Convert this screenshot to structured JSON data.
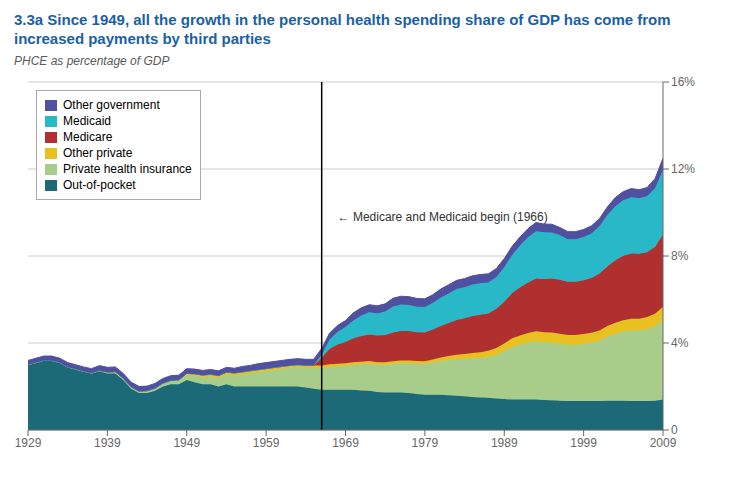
{
  "chart_data": {
    "type": "area",
    "stacked": true,
    "title": "3.3a Since 1949, all the growth in the personal health spending share of GDP has come from increased payments by third parties",
    "y_label": "PHCE as percentage of GDP",
    "annotations": [
      {
        "text": "← Medicare and Medicaid begin (1966)",
        "x": 1968,
        "y": 9.8
      }
    ],
    "vlines": [
      1966
    ],
    "xlim": [
      1929,
      2009
    ],
    "xticks": [
      1929,
      1939,
      1949,
      1959,
      1969,
      1979,
      1989,
      1999,
      2009
    ],
    "ylim": [
      0,
      16
    ],
    "yticks": [
      0,
      {
        "value": 4,
        "label": "4%"
      },
      {
        "value": 8,
        "label": "8%"
      },
      {
        "value": 12,
        "label": "12%"
      },
      {
        "value": 16,
        "label": "16%"
      }
    ],
    "grid": true,
    "legend": "upper left",
    "x": [
      1929,
      1930,
      1931,
      1932,
      1933,
      1934,
      1935,
      1936,
      1937,
      1938,
      1939,
      1940,
      1941,
      1942,
      1943,
      1944,
      1945,
      1946,
      1947,
      1948,
      1949,
      1950,
      1951,
      1952,
      1953,
      1954,
      1955,
      1956,
      1957,
      1958,
      1959,
      1960,
      1961,
      1962,
      1963,
      1964,
      1965,
      1966,
      1967,
      1968,
      1969,
      1970,
      1971,
      1972,
      1973,
      1974,
      1975,
      1976,
      1977,
      1978,
      1979,
      1980,
      1981,
      1982,
      1983,
      1984,
      1985,
      1986,
      1987,
      1988,
      1989,
      1990,
      1991,
      1992,
      1993,
      1994,
      1995,
      1996,
      1997,
      1998,
      1999,
      2000,
      2001,
      2002,
      2003,
      2004,
      2005,
      2006,
      2007,
      2008,
      2009
    ],
    "series": [
      {
        "name": "Out-of-pocket",
        "color": "#1c6978",
        "values": [
          3.0,
          3.1,
          3.2,
          3.2,
          3.1,
          2.9,
          2.8,
          2.7,
          2.6,
          2.7,
          2.6,
          2.6,
          2.3,
          1.9,
          1.7,
          1.7,
          1.8,
          2.0,
          2.1,
          2.1,
          2.3,
          2.2,
          2.1,
          2.1,
          2.0,
          2.1,
          2.0,
          2.0,
          2.0,
          2.0,
          2.0,
          2.0,
          2.0,
          2.0,
          2.0,
          1.95,
          1.9,
          1.85,
          1.85,
          1.85,
          1.85,
          1.85,
          1.82,
          1.8,
          1.75,
          1.72,
          1.72,
          1.72,
          1.7,
          1.65,
          1.62,
          1.62,
          1.62,
          1.6,
          1.58,
          1.55,
          1.52,
          1.5,
          1.48,
          1.45,
          1.42,
          1.4,
          1.4,
          1.4,
          1.4,
          1.38,
          1.37,
          1.35,
          1.33,
          1.33,
          1.33,
          1.33,
          1.33,
          1.35,
          1.35,
          1.35,
          1.33,
          1.33,
          1.33,
          1.35,
          1.4
        ]
      },
      {
        "name": "Private health insurance",
        "color": "#a8cc8a",
        "values": [
          0.0,
          0.0,
          0.0,
          0.0,
          0.0,
          0.0,
          0.0,
          0.0,
          0.02,
          0.04,
          0.06,
          0.08,
          0.08,
          0.08,
          0.08,
          0.1,
          0.12,
          0.15,
          0.18,
          0.2,
          0.22,
          0.28,
          0.32,
          0.36,
          0.4,
          0.44,
          0.5,
          0.55,
          0.6,
          0.65,
          0.7,
          0.75,
          0.8,
          0.85,
          0.88,
          0.9,
          0.95,
          1.0,
          1.05,
          1.08,
          1.1,
          1.15,
          1.2,
          1.25,
          1.25,
          1.28,
          1.32,
          1.36,
          1.38,
          1.4,
          1.42,
          1.48,
          1.55,
          1.62,
          1.68,
          1.72,
          1.78,
          1.82,
          1.88,
          2.0,
          2.2,
          2.42,
          2.52,
          2.62,
          2.68,
          2.65,
          2.65,
          2.62,
          2.58,
          2.58,
          2.62,
          2.68,
          2.78,
          2.95,
          3.08,
          3.18,
          3.25,
          3.25,
          3.3,
          3.42,
          3.65
        ]
      },
      {
        "name": "Other private",
        "color": "#e8c020",
        "values": [
          0.0,
          0.0,
          0.0,
          0.0,
          0.0,
          0.0,
          0.0,
          0.0,
          0.0,
          0.0,
          0.0,
          0.0,
          0.0,
          0.0,
          0.0,
          0.0,
          0.0,
          0.0,
          0.0,
          0.0,
          0.08,
          0.1,
          0.1,
          0.1,
          0.1,
          0.12,
          0.12,
          0.12,
          0.12,
          0.12,
          0.12,
          0.12,
          0.12,
          0.12,
          0.12,
          0.12,
          0.12,
          0.12,
          0.12,
          0.12,
          0.12,
          0.12,
          0.12,
          0.12,
          0.12,
          0.12,
          0.12,
          0.12,
          0.12,
          0.12,
          0.12,
          0.14,
          0.16,
          0.18,
          0.2,
          0.22,
          0.24,
          0.26,
          0.28,
          0.32,
          0.36,
          0.4,
          0.42,
          0.44,
          0.46,
          0.46,
          0.46,
          0.46,
          0.46,
          0.46,
          0.46,
          0.46,
          0.46,
          0.48,
          0.5,
          0.52,
          0.54,
          0.54,
          0.56,
          0.58,
          0.62
        ]
      },
      {
        "name": "Medicare",
        "color": "#b03030",
        "values": [
          0.0,
          0.0,
          0.0,
          0.0,
          0.0,
          0.0,
          0.0,
          0.0,
          0.0,
          0.0,
          0.0,
          0.0,
          0.0,
          0.0,
          0.0,
          0.0,
          0.0,
          0.0,
          0.0,
          0.0,
          0.0,
          0.0,
          0.0,
          0.0,
          0.0,
          0.0,
          0.0,
          0.0,
          0.0,
          0.0,
          0.0,
          0.0,
          0.0,
          0.0,
          0.0,
          0.0,
          0.0,
          0.35,
          0.72,
          0.88,
          0.98,
          1.1,
          1.18,
          1.22,
          1.22,
          1.25,
          1.32,
          1.35,
          1.35,
          1.32,
          1.32,
          1.38,
          1.45,
          1.52,
          1.6,
          1.65,
          1.7,
          1.72,
          1.72,
          1.8,
          1.92,
          2.08,
          2.22,
          2.32,
          2.42,
          2.45,
          2.48,
          2.48,
          2.45,
          2.45,
          2.48,
          2.52,
          2.62,
          2.75,
          2.88,
          2.96,
          3.0,
          2.98,
          2.98,
          3.08,
          3.32
        ]
      },
      {
        "name": "Medicaid",
        "color": "#28b8c8",
        "values": [
          0.0,
          0.0,
          0.0,
          0.0,
          0.0,
          0.0,
          0.0,
          0.0,
          0.0,
          0.0,
          0.0,
          0.0,
          0.0,
          0.0,
          0.0,
          0.0,
          0.0,
          0.0,
          0.0,
          0.0,
          0.0,
          0.0,
          0.0,
          0.0,
          0.0,
          0.0,
          0.0,
          0.0,
          0.0,
          0.0,
          0.0,
          0.0,
          0.0,
          0.0,
          0.0,
          0.0,
          0.0,
          0.15,
          0.42,
          0.58,
          0.68,
          0.82,
          0.95,
          1.02,
          1.02,
          1.08,
          1.2,
          1.22,
          1.2,
          1.18,
          1.17,
          1.22,
          1.3,
          1.36,
          1.42,
          1.42,
          1.45,
          1.45,
          1.42,
          1.45,
          1.58,
          1.75,
          1.92,
          2.08,
          2.18,
          2.15,
          2.12,
          2.05,
          1.95,
          1.95,
          1.98,
          2.05,
          2.18,
          2.35,
          2.48,
          2.55,
          2.58,
          2.55,
          2.58,
          2.68,
          2.98
        ]
      },
      {
        "name": "Other government",
        "color": "#5050a0",
        "values": [
          0.2,
          0.2,
          0.2,
          0.2,
          0.2,
          0.2,
          0.2,
          0.2,
          0.2,
          0.22,
          0.22,
          0.22,
          0.22,
          0.22,
          0.22,
          0.22,
          0.22,
          0.22,
          0.22,
          0.22,
          0.22,
          0.22,
          0.22,
          0.22,
          0.22,
          0.22,
          0.22,
          0.25,
          0.25,
          0.28,
          0.28,
          0.28,
          0.28,
          0.28,
          0.28,
          0.28,
          0.28,
          0.28,
          0.3,
          0.3,
          0.3,
          0.35,
          0.35,
          0.35,
          0.35,
          0.35,
          0.38,
          0.38,
          0.38,
          0.38,
          0.38,
          0.38,
          0.4,
          0.4,
          0.4,
          0.4,
          0.4,
          0.4,
          0.4,
          0.4,
          0.4,
          0.4,
          0.4,
          0.4,
          0.4,
          0.38,
          0.38,
          0.35,
          0.35,
          0.35,
          0.35,
          0.35,
          0.35,
          0.38,
          0.4,
          0.4,
          0.4,
          0.4,
          0.4,
          0.45,
          0.52
        ]
      }
    ]
  }
}
